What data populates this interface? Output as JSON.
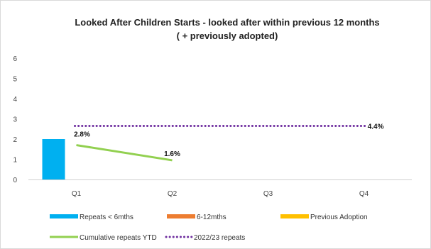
{
  "chart_data": {
    "type": "bar",
    "title": "Looked After Children Starts - looked after within previous 12 months",
    "subtitle": "( + previously adopted)",
    "categories": [
      "Q1",
      "Q2",
      "Q3",
      "Q4"
    ],
    "ylim": [
      0,
      6
    ],
    "yticks": [
      0,
      1,
      2,
      3,
      4,
      5,
      6
    ],
    "grid": false,
    "legend_position": "bottom",
    "series": [
      {
        "name": "Repeats < 6mths",
        "kind": "bar",
        "color": "#00b0f0",
        "values": [
          2,
          null,
          null,
          null
        ]
      },
      {
        "name": "6-12mths",
        "kind": "bar",
        "color": "#ed7d31",
        "values": [
          0,
          null,
          null,
          null
        ]
      },
      {
        "name": "Previous Adoption",
        "kind": "bar",
        "color": "#ffc000",
        "values": [
          0,
          null,
          null,
          null
        ]
      },
      {
        "name": "Cumulative repeats YTD",
        "kind": "line",
        "color": "#92d050",
        "values": [
          1.7,
          0.95,
          null,
          null
        ],
        "labels": [
          "2.8%",
          "1.6%",
          null,
          null
        ]
      },
      {
        "name": "2022/23 repeats",
        "kind": "dotted-line",
        "color": "#7030a0",
        "values": [
          2.65,
          2.65,
          2.65,
          2.65
        ],
        "labels": [
          null,
          null,
          null,
          "4.4%"
        ]
      }
    ]
  }
}
